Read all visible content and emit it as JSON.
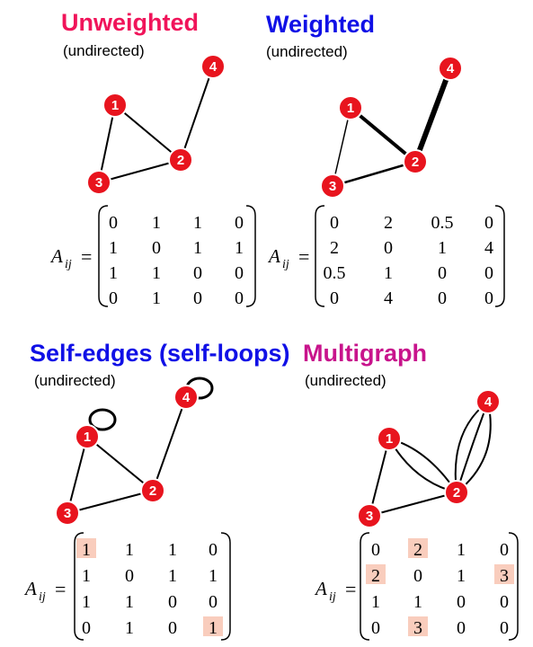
{
  "colors": {
    "unweighted_title": "#f0145a",
    "weighted_title": "#1010e6",
    "selfedge_title": "#1010e6",
    "multigraph_title": "#c8148c",
    "node_fill": "#e8141e",
    "highlight": "#f9cdbd"
  },
  "panels": [
    {
      "id": "unweighted",
      "title": "Unweighted",
      "subtitle": "(undirected)",
      "nodes": [
        {
          "label": "1"
        },
        {
          "label": "2"
        },
        {
          "label": "3"
        },
        {
          "label": "4"
        }
      ],
      "matrix_lhs": "A",
      "matrix_sub": "ij",
      "matrix_eq": "=",
      "matrix": [
        [
          "0",
          "1",
          "1",
          "0"
        ],
        [
          "1",
          "0",
          "1",
          "1"
        ],
        [
          "1",
          "1",
          "0",
          "0"
        ],
        [
          "0",
          "1",
          "0",
          "0"
        ]
      ]
    },
    {
      "id": "weighted",
      "title": "Weighted",
      "subtitle": "(undirected)",
      "nodes": [
        {
          "label": "1"
        },
        {
          "label": "2"
        },
        {
          "label": "3"
        },
        {
          "label": "4"
        }
      ],
      "matrix_lhs": "A",
      "matrix_sub": "ij",
      "matrix_eq": "=",
      "matrix": [
        [
          "0",
          "2",
          "0.5",
          "0"
        ],
        [
          "2",
          "0",
          "1",
          "4"
        ],
        [
          "0.5",
          "1",
          "0",
          "0"
        ],
        [
          "0",
          "4",
          "0",
          "0"
        ]
      ]
    },
    {
      "id": "selfedges",
      "title": "Self-edges (self-loops)",
      "subtitle": "(undirected)",
      "nodes": [
        {
          "label": "1"
        },
        {
          "label": "2"
        },
        {
          "label": "3"
        },
        {
          "label": "4"
        }
      ],
      "matrix_lhs": "A",
      "matrix_sub": "ij",
      "matrix_eq": "=",
      "matrix": [
        [
          "1",
          "1",
          "1",
          "0"
        ],
        [
          "1",
          "0",
          "1",
          "1"
        ],
        [
          "1",
          "1",
          "0",
          "0"
        ],
        [
          "0",
          "1",
          "0",
          "1"
        ]
      ],
      "highlighted_cells": [
        [
          0,
          0
        ],
        [
          3,
          3
        ]
      ]
    },
    {
      "id": "multigraph",
      "title": "Multigraph",
      "subtitle": "(undirected)",
      "nodes": [
        {
          "label": "1"
        },
        {
          "label": "2"
        },
        {
          "label": "3"
        },
        {
          "label": "4"
        }
      ],
      "matrix_lhs": "A",
      "matrix_sub": "ij",
      "matrix_eq": "=",
      "matrix": [
        [
          "0",
          "2",
          "1",
          "0"
        ],
        [
          "2",
          "0",
          "1",
          "3"
        ],
        [
          "1",
          "1",
          "0",
          "0"
        ],
        [
          "0",
          "3",
          "0",
          "0"
        ]
      ],
      "highlighted_cells": [
        [
          0,
          1
        ],
        [
          1,
          0
        ],
        [
          1,
          3
        ],
        [
          3,
          1
        ]
      ]
    }
  ]
}
